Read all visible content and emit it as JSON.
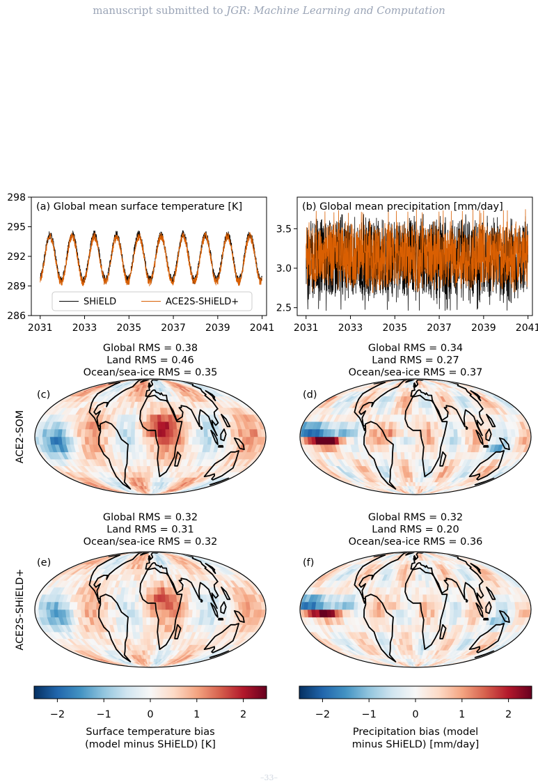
{
  "header": {
    "prefix": "manuscript submitted to ",
    "journal": "JGR: Machine Learning and Computation"
  },
  "page_number": "–33–",
  "colors": {
    "shield": "#000000",
    "ace": "#d95f02",
    "cmap": [
      "#053061",
      "#2166ac",
      "#4393c3",
      "#92c5de",
      "#d1e5f0",
      "#f7f7f7",
      "#fddbc7",
      "#f4a582",
      "#d6604d",
      "#b2182b",
      "#67001f"
    ]
  },
  "row_labels": [
    "ACE2-SOM",
    "ACE2S-SHiELD+"
  ],
  "chart_data": [
    {
      "type": "line",
      "panel": "(a)",
      "title": "(a) Global mean surface temperature [K]",
      "xlabel": "",
      "ylabel": "",
      "xlim": [
        2030.6,
        2041.2
      ],
      "ylim": [
        286,
        298
      ],
      "xticks": [
        2031,
        2033,
        2035,
        2037,
        2039,
        2041
      ],
      "yticks": [
        286,
        289,
        292,
        295,
        298
      ],
      "legend": {
        "placement": "lower-center",
        "entries": [
          "SHiELD",
          "ACE2S-SHiELD+"
        ]
      },
      "series": [
        {
          "name": "SHiELD",
          "mean": 291.9,
          "amplitude": 2.3,
          "period_years": 1,
          "range": [
            289.4,
            294.4
          ]
        },
        {
          "name": "ACE2S-SHiELD+",
          "mean": 291.7,
          "amplitude": 2.3,
          "period_years": 1,
          "range": [
            289.1,
            294.3
          ]
        }
      ]
    },
    {
      "type": "line",
      "panel": "(b)",
      "title": "(b) Global mean precipitation [mm/day]",
      "xlabel": "",
      "ylabel": "",
      "xlim": [
        2030.6,
        2041.2
      ],
      "ylim": [
        2.4,
        3.9
      ],
      "xticks": [
        2031,
        2033,
        2035,
        2037,
        2039,
        2041
      ],
      "yticks": [
        2.5,
        3.0,
        3.5
      ],
      "series": [
        {
          "name": "SHiELD",
          "mean": 3.12,
          "range": [
            2.45,
            3.7
          ]
        },
        {
          "name": "ACE2S-SHiELD+",
          "mean": 3.15,
          "range": [
            2.75,
            3.75
          ]
        }
      ]
    },
    {
      "type": "heatmap",
      "panel": "(c)",
      "row": "ACE2-SOM",
      "variable": "surface temperature",
      "stats": [
        "Global RMS = 0.38",
        "Land RMS = 0.46",
        "Ocean/sea-ice RMS = 0.35"
      ]
    },
    {
      "type": "heatmap",
      "panel": "(d)",
      "row": "ACE2-SOM",
      "variable": "precipitation",
      "stats": [
        "Global RMS = 0.34",
        "Land RMS = 0.27",
        "Ocean/sea-ice RMS = 0.37"
      ]
    },
    {
      "type": "heatmap",
      "panel": "(e)",
      "row": "ACE2S-SHiELD+",
      "variable": "surface temperature",
      "stats": [
        "Global RMS = 0.32",
        "Land RMS = 0.31",
        "Ocean/sea-ice RMS = 0.32"
      ]
    },
    {
      "type": "heatmap",
      "panel": "(f)",
      "row": "ACE2S-SHiELD+",
      "variable": "precipitation",
      "stats": [
        "Global RMS = 0.32",
        "Land RMS = 0.20",
        "Ocean/sea-ice RMS = 0.36"
      ]
    },
    {
      "type": "colorbar",
      "range": [
        -2.5,
        2.5
      ],
      "ticks": [
        -2,
        -1,
        0,
        1,
        2
      ],
      "tick_labels": [
        "−2",
        "−1",
        "0",
        "1",
        "2"
      ],
      "label": [
        "Surface temperature bias",
        "(model minus SHiELD) [K]"
      ]
    },
    {
      "type": "colorbar",
      "range": [
        -2.5,
        2.5
      ],
      "ticks": [
        -2,
        -1,
        0,
        1,
        2
      ],
      "tick_labels": [
        "−2",
        "−1",
        "0",
        "1",
        "2"
      ],
      "label": [
        "Precipitation bias (model",
        "minus SHiELD) [mm/day]"
      ]
    }
  ]
}
